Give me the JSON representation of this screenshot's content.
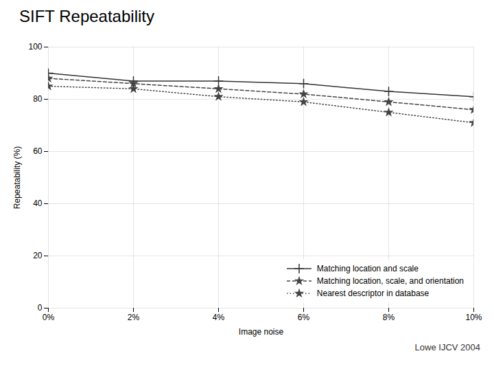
{
  "chart_data": {
    "type": "line",
    "title": "SIFT Repeatability",
    "x_label": "Image noise",
    "y_label": "Repeatability (%)",
    "x": [
      0,
      2,
      4,
      6,
      8,
      10
    ],
    "series": [
      {
        "name": "Matching location and scale",
        "color": "#333333",
        "values": [
          90,
          87,
          87,
          86,
          83,
          81
        ],
        "marker": "plus",
        "line_style": "solid"
      },
      {
        "name": "Matching location, scale, and orientation",
        "color": "#444444",
        "values": [
          88,
          86,
          84,
          82,
          79,
          76
        ],
        "marker": "star",
        "line_style": "dashed"
      },
      {
        "name": "Nearest descriptor in database",
        "color": "#444444",
        "values": [
          85,
          84,
          81,
          79,
          75,
          71
        ],
        "marker": "star",
        "line_style": "dotted"
      }
    ],
    "xlim": [
      0,
      10
    ],
    "xticks": [
      {
        "value": 0,
        "label": "0%"
      },
      {
        "value": 2,
        "label": "2%"
      },
      {
        "value": 4,
        "label": "4%"
      },
      {
        "value": 6,
        "label": "6%"
      },
      {
        "value": 8,
        "label": "8%"
      },
      {
        "value": 10,
        "label": "10%"
      }
    ],
    "ylim": [
      0,
      100
    ],
    "yticks": [
      0,
      20,
      40,
      60,
      80,
      100
    ],
    "grid": true,
    "legend": "lower right",
    "annotations": [
      "Lowe IJCV 2004"
    ]
  }
}
